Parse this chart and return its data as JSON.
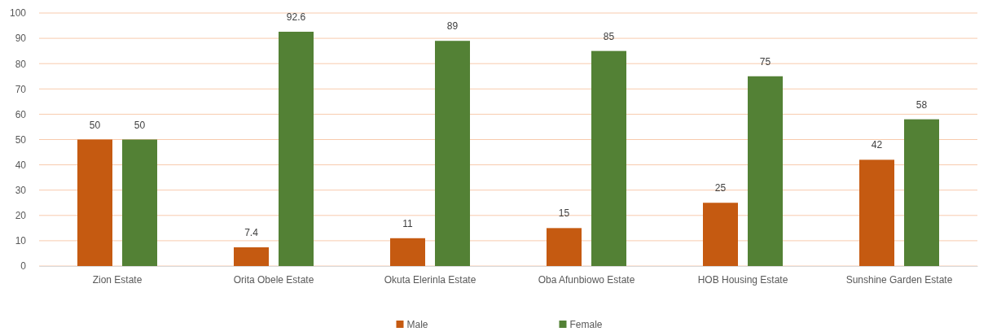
{
  "chart_data": {
    "type": "bar",
    "categories": [
      "Zion Estate",
      "Orita Obele Estate",
      "Okuta Elerinla Estate",
      "Oba Afunbiowo Estate",
      "HOB Housing Estate",
      "Sunshine Garden Estate"
    ],
    "series": [
      {
        "name": "Male",
        "color": "#c55a11",
        "values": [
          50,
          7.4,
          11,
          15,
          25,
          42
        ]
      },
      {
        "name": "Female",
        "color": "#538135",
        "values": [
          50,
          92.6,
          89,
          85,
          75,
          58
        ]
      }
    ],
    "ylim": [
      0,
      100
    ],
    "yticks": [
      0,
      10,
      20,
      30,
      40,
      50,
      60,
      70,
      80,
      90,
      100
    ],
    "grid": "y",
    "legend": "bottom",
    "data_labels": true
  }
}
